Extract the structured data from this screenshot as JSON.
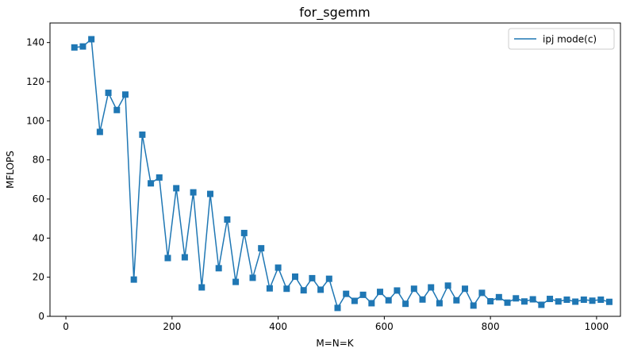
{
  "chart_data": {
    "type": "line",
    "title": "for_sgemm",
    "xlabel": "M=N=K",
    "ylabel": "MFLOPS",
    "xlim": [
      -30,
      1045
    ],
    "ylim": [
      0,
      150
    ],
    "xticks": [
      0,
      200,
      400,
      600,
      800,
      1000
    ],
    "yticks": [
      0,
      20,
      40,
      60,
      80,
      100,
      120,
      140
    ],
    "grid": false,
    "legend_position": "top-right",
    "series": [
      {
        "name": "ipj mode(c)",
        "color": "#1f77b4",
        "marker": "square",
        "x": [
          16,
          32,
          48,
          64,
          80,
          96,
          112,
          128,
          144,
          160,
          176,
          192,
          208,
          224,
          240,
          256,
          272,
          288,
          304,
          320,
          336,
          352,
          368,
          384,
          400,
          416,
          432,
          448,
          464,
          480,
          496,
          512,
          528,
          544,
          560,
          576,
          592,
          608,
          624,
          640,
          656,
          672,
          688,
          704,
          720,
          736,
          752,
          768,
          784,
          800,
          816,
          832,
          848,
          864,
          880,
          896,
          912,
          928,
          944,
          960,
          976,
          992,
          1008,
          1024
        ],
        "y": [
          137.5,
          138,
          141.7,
          94.3,
          114.3,
          105.5,
          113.4,
          18.8,
          92.9,
          68,
          71,
          29.8,
          65.5,
          30.2,
          63.4,
          14.8,
          62.6,
          24.6,
          49.5,
          17.6,
          42.6,
          19.7,
          34.8,
          14.3,
          24.9,
          14.1,
          20.3,
          13.3,
          19.5,
          13.6,
          19.2,
          4.3,
          11.5,
          7.9,
          11,
          6.7,
          12.5,
          8.2,
          13.2,
          6.4,
          14.1,
          8.6,
          14.8,
          6.7,
          15.7,
          8.2,
          14.1,
          5.5,
          12,
          7.7,
          9.8,
          7,
          9.2,
          7.6,
          8.7,
          5.9,
          8.9,
          7.6,
          8.5,
          7.5,
          8.5,
          8,
          8.5,
          7.4
        ]
      }
    ]
  }
}
